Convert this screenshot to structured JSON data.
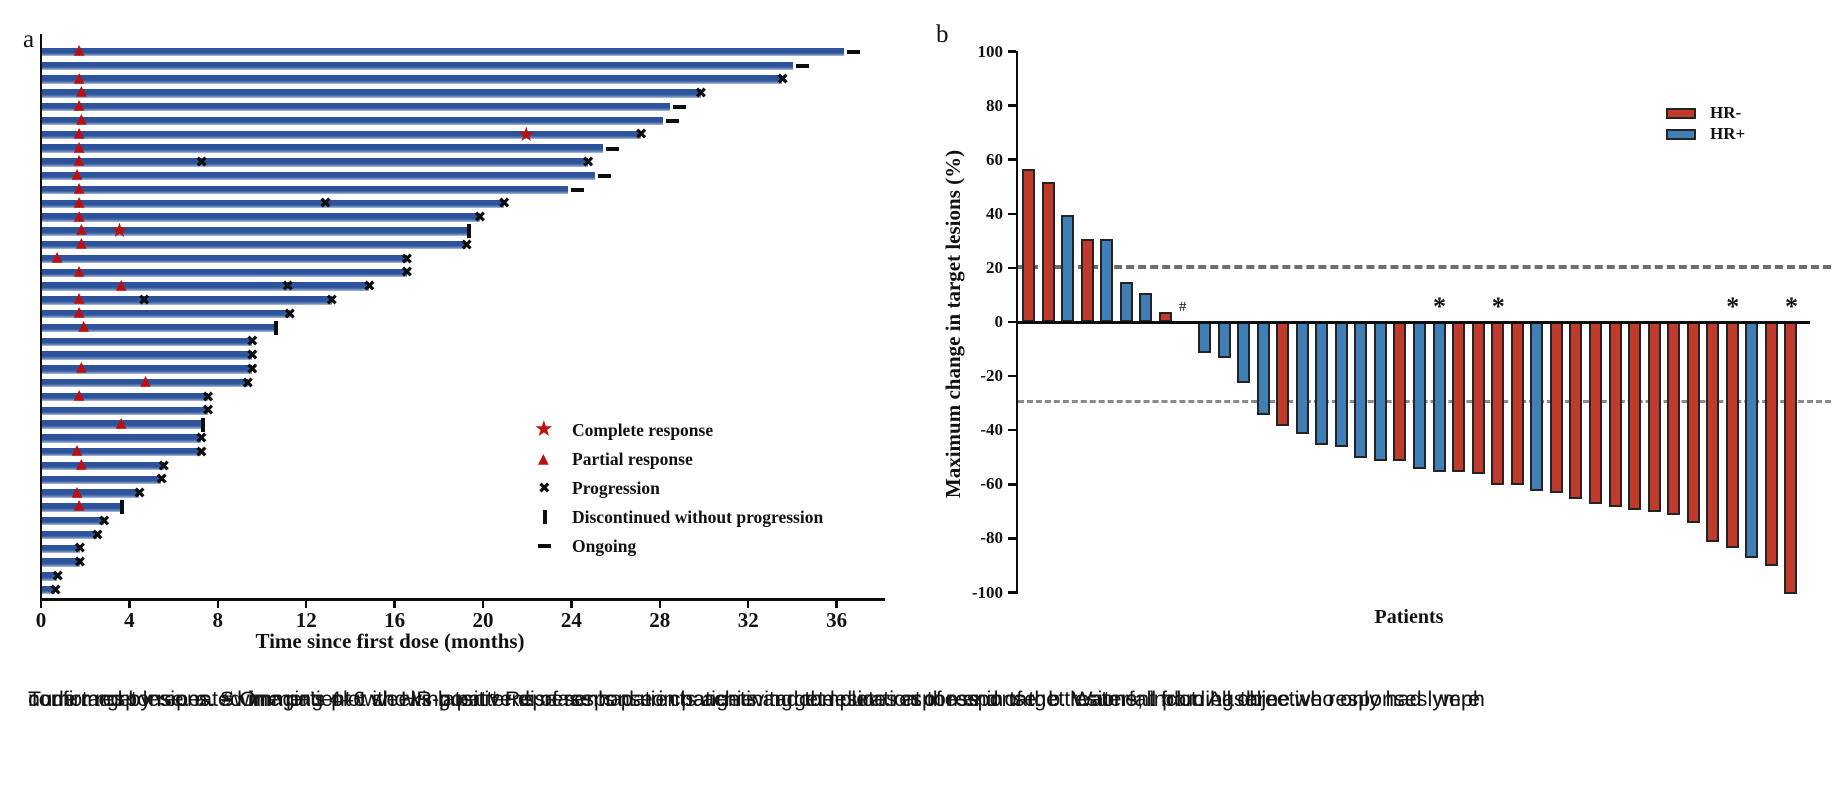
{
  "figure": {
    "panel_a_label": "a",
    "panel_b_label": "b",
    "caption_lines": [
      "Tumor response. a. Swimmer’s plot showing patterns of response in patients and the duration of response. b. Waterfall plot. All objective responses were",
      "confirmed by repeated imaging 4–6 weeks later. * Represents patients achieving complete response in target lesions, including three who only had lymph",
      "node target lesions. # One patient with HR-positive disease had no change in target lesions at the end of the treatment from baseline."
    ]
  },
  "chart_data": [
    {
      "type": "swimmer",
      "panel": "a",
      "xlabel": "Time since first dose (months)",
      "xlim": [
        0,
        38
      ],
      "xticks": [
        0,
        4,
        8,
        12,
        16,
        20,
        24,
        28,
        32,
        36
      ],
      "bar_color": "#2d549b",
      "marker_color": "#bc0f0f",
      "legend": [
        {
          "marker": "star",
          "label": "Complete response"
        },
        {
          "marker": "triangle",
          "label": "Partial response"
        },
        {
          "marker": "x",
          "label": "Progression"
        },
        {
          "marker": "stop",
          "label": "Discontinued without progression"
        },
        {
          "marker": "dash",
          "label": "Ongoing"
        }
      ],
      "patients": [
        {
          "months": 36.3,
          "end": "ongoing",
          "triangle": 1.8
        },
        {
          "months": 34.0,
          "end": "ongoing"
        },
        {
          "months": 33.5,
          "end": "progression",
          "triangle": 1.8
        },
        {
          "months": 29.8,
          "end": "progression",
          "triangle": 1.9
        },
        {
          "months": 28.4,
          "end": "ongoing",
          "triangle": 1.8
        },
        {
          "months": 28.1,
          "end": "ongoing",
          "triangle": 1.9
        },
        {
          "months": 27.1,
          "end": "progression",
          "triangle": 1.8,
          "star": 22.0
        },
        {
          "months": 25.4,
          "end": "ongoing",
          "triangle": 1.8
        },
        {
          "months": 24.7,
          "end": "progression",
          "triangle": 1.8,
          "x_mid": [
            7.3
          ]
        },
        {
          "months": 25.0,
          "end": "ongoing",
          "triangle": 1.7
        },
        {
          "months": 23.8,
          "end": "ongoing",
          "triangle": 1.8
        },
        {
          "months": 20.9,
          "end": "progression",
          "triangle": 1.8,
          "x_mid": [
            12.9
          ]
        },
        {
          "months": 19.8,
          "end": "progression",
          "triangle": 1.8
        },
        {
          "months": 19.3,
          "end": "discontinued",
          "triangle": 1.9,
          "star": 3.6
        },
        {
          "months": 19.2,
          "end": "progression",
          "triangle": 1.9
        },
        {
          "months": 16.5,
          "end": "progression",
          "triangle": 0.8
        },
        {
          "months": 16.5,
          "end": "progression",
          "triangle": 1.8
        },
        {
          "months": 14.8,
          "end": "progression",
          "triangle": 3.7,
          "x_mid": [
            11.2
          ]
        },
        {
          "months": 13.1,
          "end": "progression",
          "triangle": 1.8,
          "x_mid": [
            4.7
          ]
        },
        {
          "months": 11.2,
          "end": "progression",
          "triangle": 1.8
        },
        {
          "months": 10.6,
          "end": "discontinued",
          "triangle": 2.0
        },
        {
          "months": 9.5,
          "end": "progression"
        },
        {
          "months": 9.5,
          "end": "progression"
        },
        {
          "months": 9.5,
          "end": "progression",
          "triangle": 1.9
        },
        {
          "months": 9.3,
          "end": "progression",
          "triangle": 4.8
        },
        {
          "months": 7.5,
          "end": "progression",
          "triangle": 1.8
        },
        {
          "months": 7.5,
          "end": "progression"
        },
        {
          "months": 7.3,
          "end": "discontinued",
          "triangle": 3.7
        },
        {
          "months": 7.2,
          "end": "progression"
        },
        {
          "months": 7.2,
          "end": "progression",
          "triangle": 1.7
        },
        {
          "months": 5.5,
          "end": "progression",
          "triangle": 1.9
        },
        {
          "months": 5.4,
          "end": "progression"
        },
        {
          "months": 4.4,
          "end": "progression",
          "triangle": 1.7
        },
        {
          "months": 3.6,
          "end": "discontinued",
          "triangle": 1.8
        },
        {
          "months": 2.8,
          "end": "progression"
        },
        {
          "months": 2.5,
          "end": "progression"
        },
        {
          "months": 1.7,
          "end": "progression"
        },
        {
          "months": 1.7,
          "end": "progression"
        },
        {
          "months": 0.7,
          "end": "progression"
        },
        {
          "months": 0.6,
          "end": "progression"
        }
      ]
    },
    {
      "type": "bar",
      "panel": "b",
      "ylabel": "Maximum change in target lesions (%)",
      "xlabel": "Patients",
      "ylim": [
        -100,
        100
      ],
      "yticks": [
        100,
        80,
        60,
        40,
        20,
        0,
        -20,
        -40,
        -60,
        -80,
        -100
      ],
      "reference_lines": [
        20,
        -30
      ],
      "grid": false,
      "legend_position": "upper right",
      "legend": [
        {
          "label": "HR-",
          "color": "#c13b2d"
        },
        {
          "label": "HR+",
          "color": "#3f7fb5"
        }
      ],
      "series_colors": {
        "HR-": "#c13b2d",
        "HR+": "#3f7fb5"
      },
      "bars": [
        {
          "value": 56,
          "group": "HR-"
        },
        {
          "value": 51,
          "group": "HR-"
        },
        {
          "value": 39,
          "group": "HR+"
        },
        {
          "value": 30,
          "group": "HR-"
        },
        {
          "value": 30,
          "group": "HR+"
        },
        {
          "value": 14,
          "group": "HR+"
        },
        {
          "value": 10,
          "group": "HR+"
        },
        {
          "value": 3,
          "group": "HR-"
        },
        {
          "value": 0,
          "group": "HR+",
          "annotation": "#"
        },
        {
          "value": -11,
          "group": "HR+"
        },
        {
          "value": -13,
          "group": "HR+"
        },
        {
          "value": -22,
          "group": "HR+"
        },
        {
          "value": -34,
          "group": "HR+"
        },
        {
          "value": -38,
          "group": "HR-"
        },
        {
          "value": -41,
          "group": "HR+"
        },
        {
          "value": -45,
          "group": "HR+"
        },
        {
          "value": -46,
          "group": "HR+"
        },
        {
          "value": -50,
          "group": "HR+"
        },
        {
          "value": -51,
          "group": "HR+"
        },
        {
          "value": -51,
          "group": "HR-"
        },
        {
          "value": -54,
          "group": "HR+"
        },
        {
          "value": -55,
          "group": "HR+",
          "annotation": "*"
        },
        {
          "value": -55,
          "group": "HR-"
        },
        {
          "value": -56,
          "group": "HR-"
        },
        {
          "value": -60,
          "group": "HR-",
          "annotation": "*"
        },
        {
          "value": -60,
          "group": "HR-"
        },
        {
          "value": -62,
          "group": "HR+"
        },
        {
          "value": -63,
          "group": "HR-"
        },
        {
          "value": -65,
          "group": "HR-"
        },
        {
          "value": -67,
          "group": "HR-"
        },
        {
          "value": -68,
          "group": "HR-"
        },
        {
          "value": -69,
          "group": "HR-"
        },
        {
          "value": -70,
          "group": "HR-"
        },
        {
          "value": -71,
          "group": "HR-"
        },
        {
          "value": -74,
          "group": "HR-"
        },
        {
          "value": -81,
          "group": "HR-"
        },
        {
          "value": -83,
          "group": "HR-",
          "annotation": "*"
        },
        {
          "value": -87,
          "group": "HR+"
        },
        {
          "value": -90,
          "group": "HR-"
        },
        {
          "value": -100,
          "group": "HR-",
          "annotation": "*"
        }
      ]
    }
  ]
}
